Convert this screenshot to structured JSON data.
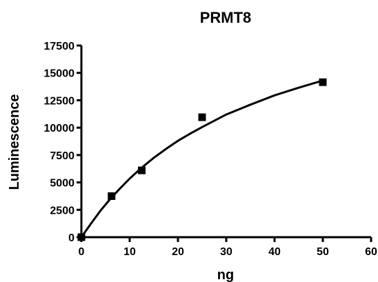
{
  "chart_data": {
    "type": "scatter",
    "title": "PRMT8",
    "xlabel": "ng",
    "ylabel": "Luminescence",
    "xlim": [
      0,
      60
    ],
    "ylim": [
      0,
      17500
    ],
    "x_ticks": [
      0,
      10,
      20,
      30,
      40,
      50,
      60
    ],
    "y_ticks": [
      0,
      2500,
      5000,
      7500,
      10000,
      12500,
      15000,
      17500
    ],
    "x_tick_labels": [
      "0",
      "10",
      "20",
      "30",
      "40",
      "50",
      "60"
    ],
    "y_tick_labels": [
      "0",
      "2500",
      "5000",
      "7500",
      "10000",
      "12500",
      "15000",
      "17500"
    ],
    "grid": false,
    "series": [
      {
        "marker": "square",
        "color": "#000000",
        "points": [
          {
            "x": 0,
            "y": 0
          },
          {
            "x": 6.25,
            "y": 3750
          },
          {
            "x": 12.5,
            "y": 6100
          },
          {
            "x": 25,
            "y": 10950
          },
          {
            "x": 50,
            "y": 14150
          }
        ]
      }
    ],
    "fit_curve": {
      "color": "#000000",
      "points": [
        {
          "x": 0,
          "y": 0
        },
        {
          "x": 2,
          "y": 1250
        },
        {
          "x": 4,
          "y": 2450
        },
        {
          "x": 6,
          "y": 3500
        },
        {
          "x": 8,
          "y": 4450
        },
        {
          "x": 10,
          "y": 5350
        },
        {
          "x": 12.5,
          "y": 6350
        },
        {
          "x": 15,
          "y": 7250
        },
        {
          "x": 17.5,
          "y": 8050
        },
        {
          "x": 20,
          "y": 8800
        },
        {
          "x": 22.5,
          "y": 9450
        },
        {
          "x": 25,
          "y": 10050
        },
        {
          "x": 30,
          "y": 11200
        },
        {
          "x": 35,
          "y": 12100
        },
        {
          "x": 40,
          "y": 12950
        },
        {
          "x": 45,
          "y": 13650
        },
        {
          "x": 50,
          "y": 14300
        }
      ]
    }
  }
}
